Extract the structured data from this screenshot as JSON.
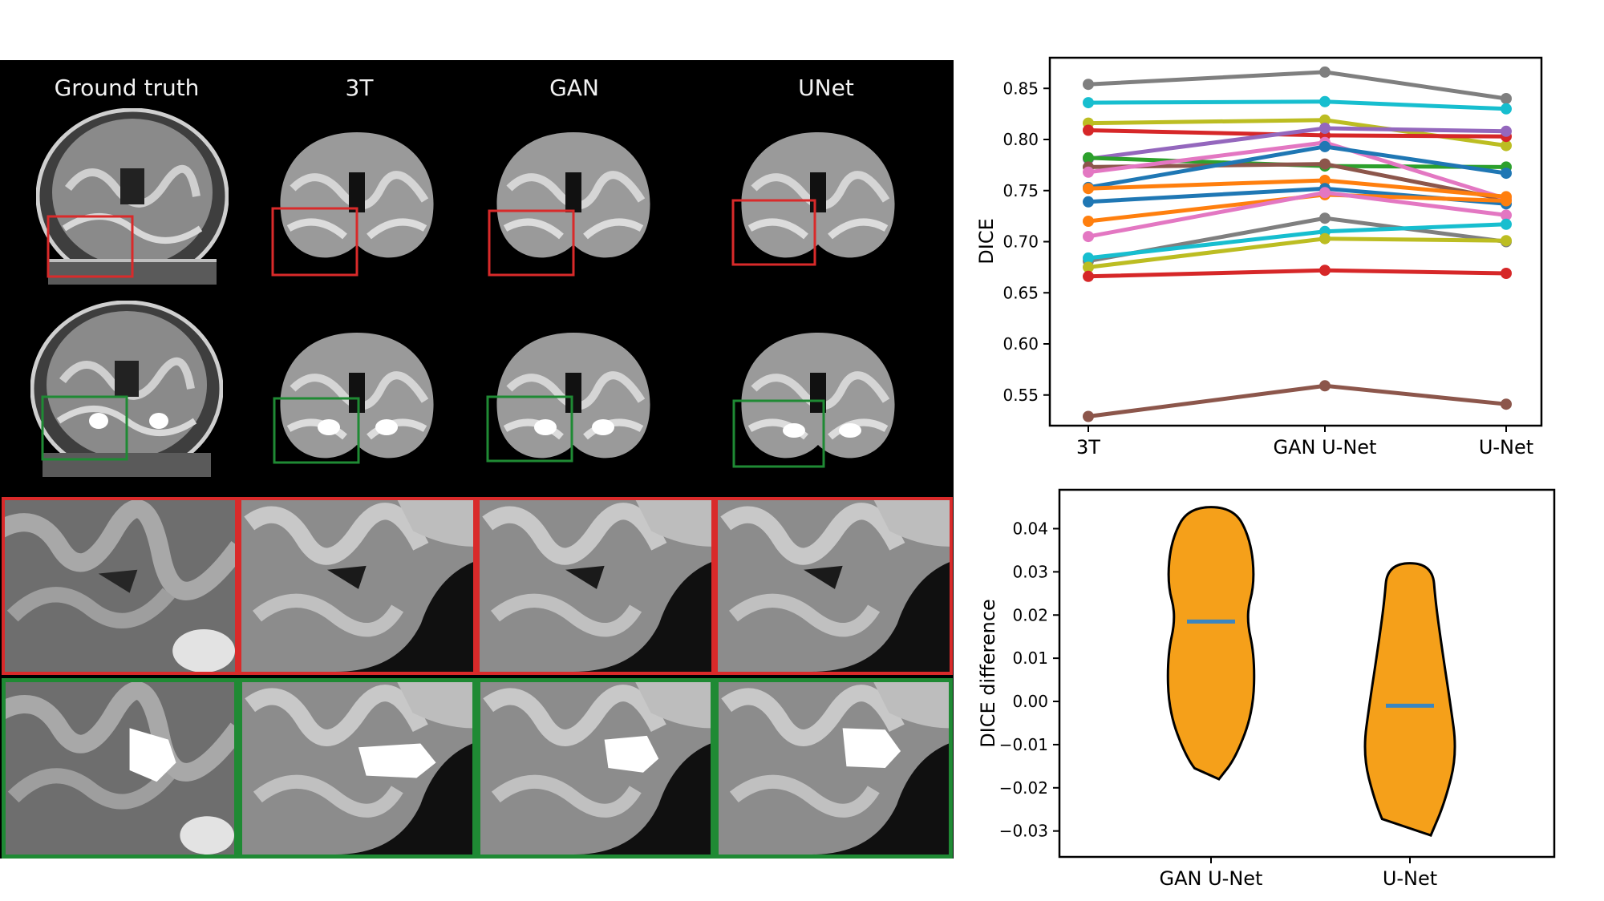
{
  "panel_titles": [
    "Ground truth",
    "3T",
    "GAN",
    "UNet"
  ],
  "chart_data": [
    {
      "type": "line",
      "xlabel": "",
      "ylabel": "DICE",
      "categories": [
        "3T",
        "GAN U-Net",
        "U-Net"
      ],
      "ylim": [
        0.52,
        0.88
      ],
      "yticks": [
        0.55,
        0.6,
        0.65,
        0.7,
        0.75,
        0.8,
        0.85
      ],
      "ytick_labels": [
        "0.55",
        "0.60",
        "0.65",
        "0.70",
        "0.75",
        "0.80",
        "0.85"
      ],
      "grid": false,
      "series": [
        {
          "color": "#7f7f7f",
          "values": [
            0.854,
            0.866,
            0.84
          ]
        },
        {
          "color": "#17becf",
          "values": [
            0.836,
            0.837,
            0.83
          ]
        },
        {
          "color": "#bcbd22",
          "values": [
            0.816,
            0.819,
            0.794
          ]
        },
        {
          "color": "#d62728",
          "values": [
            0.809,
            0.804,
            0.803
          ]
        },
        {
          "color": "#9467bd",
          "values": [
            0.781,
            0.811,
            0.808
          ]
        },
        {
          "color": "#2ca02c",
          "values": [
            0.782,
            0.774,
            0.773
          ]
        },
        {
          "color": "#8c564b",
          "values": [
            0.773,
            0.776,
            0.741
          ]
        },
        {
          "color": "#e377c2",
          "values": [
            0.768,
            0.797,
            0.742
          ]
        },
        {
          "color": "#1f77b4",
          "values": [
            0.753,
            0.793,
            0.767
          ]
        },
        {
          "color": "#ff7f0e",
          "values": [
            0.752,
            0.76,
            0.744
          ]
        },
        {
          "color": "#1f77b4",
          "values": [
            0.739,
            0.752,
            0.737
          ]
        },
        {
          "color": "#ff7f0e",
          "values": [
            0.72,
            0.746,
            0.74
          ]
        },
        {
          "color": "#e377c2",
          "values": [
            0.705,
            0.748,
            0.726
          ]
        },
        {
          "color": "#7f7f7f",
          "values": [
            0.681,
            0.723,
            0.7
          ]
        },
        {
          "color": "#17becf",
          "values": [
            0.684,
            0.71,
            0.717
          ]
        },
        {
          "color": "#bcbd22",
          "values": [
            0.675,
            0.703,
            0.701
          ]
        },
        {
          "color": "#d62728",
          "values": [
            0.666,
            0.672,
            0.669
          ]
        },
        {
          "color": "#8c564b",
          "values": [
            0.529,
            0.559,
            0.541
          ]
        }
      ]
    },
    {
      "type": "violin",
      "xlabel": "",
      "ylabel": "DICE difference",
      "categories": [
        "GAN U-Net",
        "U-Net"
      ],
      "ylim": [
        -0.036,
        0.049
      ],
      "yticks": [
        -0.03,
        -0.02,
        -0.01,
        0.0,
        0.01,
        0.02,
        0.03,
        0.04
      ],
      "ytick_labels": [
        "−0.03",
        "−0.02",
        "−0.01",
        "0.00",
        "0.01",
        "0.02",
        "0.03",
        "0.04"
      ],
      "fill_color": "#f5a01a",
      "median_color": "#3a86c0",
      "grid": false,
      "violins": [
        {
          "min": -0.018,
          "max": 0.045,
          "median": 0.0185
        },
        {
          "min": -0.031,
          "max": 0.032,
          "median": -0.001
        }
      ]
    }
  ]
}
